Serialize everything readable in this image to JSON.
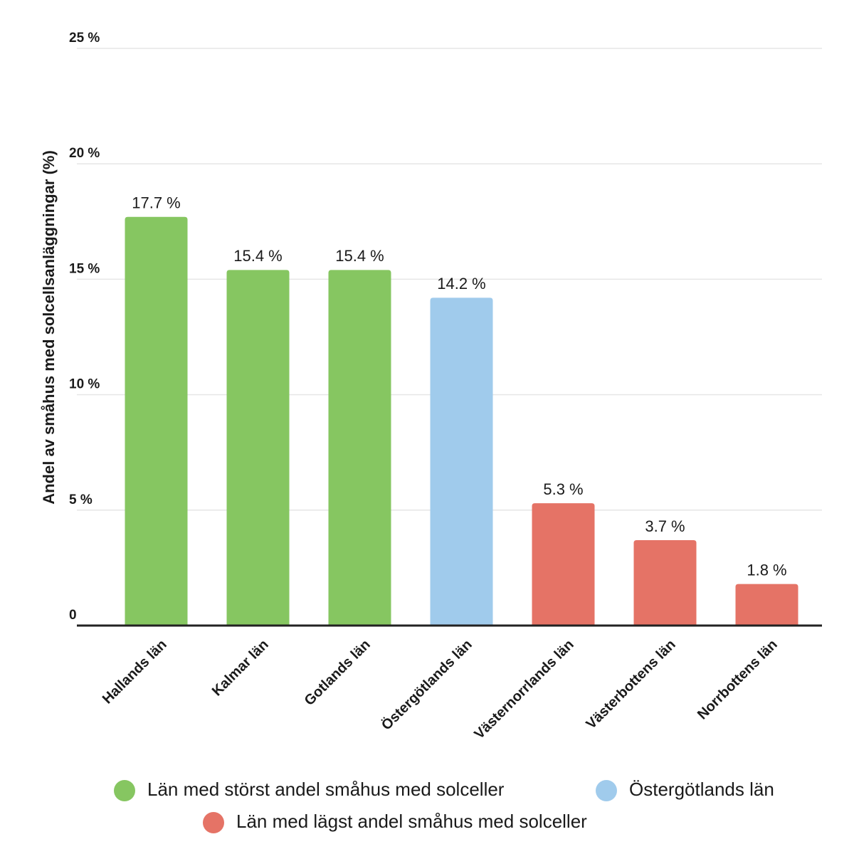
{
  "chart_data": {
    "type": "bar",
    "ylabel": "Andel av småhus med solcellsanläggningar (%)",
    "categories": [
      "Hallands län",
      "Kalmar län",
      "Gotlands län",
      "Östergötlands län",
      "Västernorrlands län",
      "Västerbottens län",
      "Norrbottens län"
    ],
    "series": [
      {
        "name": "Län med störst andel småhus med solceller",
        "color": "#86c661",
        "values": [
          17.7,
          15.4,
          15.4,
          null,
          null,
          null,
          null
        ],
        "value_labels": [
          "17.7 %",
          "15.4 %",
          "15.4 %",
          null,
          null,
          null,
          null
        ]
      },
      {
        "name": "Östergötlands län",
        "color": "#a0cbec",
        "values": [
          null,
          null,
          null,
          14.2,
          null,
          null,
          null
        ],
        "value_labels": [
          null,
          null,
          null,
          "14.2 %",
          null,
          null,
          null
        ]
      },
      {
        "name": "Län med lägst andel småhus med solceller",
        "color": "#e57366",
        "values": [
          null,
          null,
          null,
          null,
          5.3,
          3.7,
          1.8
        ],
        "value_labels": [
          null,
          null,
          null,
          null,
          "5.3 %",
          "3.7 %",
          "1.8 %"
        ]
      }
    ],
    "ylim": [
      0,
      25
    ],
    "yticks": [
      0,
      {
        "value": 5,
        "label": "5 %"
      },
      {
        "value": 10,
        "label": "10 %"
      },
      {
        "value": 15,
        "label": "15 %"
      },
      {
        "value": 20,
        "label": "20 %"
      },
      {
        "value": 25,
        "label": "25 %"
      }
    ],
    "grid": true
  }
}
